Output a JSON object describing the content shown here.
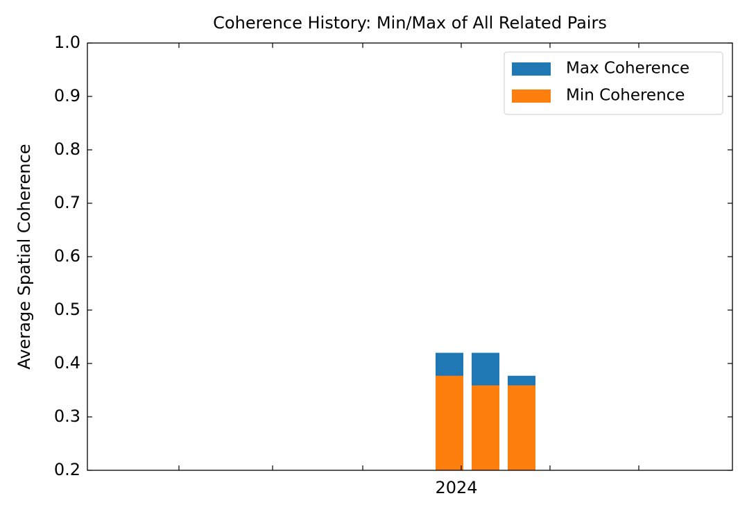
{
  "chart_data": {
    "type": "bar",
    "title": "Coherence History: Min/Max of All Related Pairs",
    "ylabel": "Average Spatial Coherence",
    "categories": [
      null,
      null,
      null
    ],
    "xtick_label": "2024",
    "series": [
      {
        "name": "Max Coherence",
        "color": "#1f77b4",
        "values": [
          0.42,
          0.42,
          0.377
        ]
      },
      {
        "name": "Min Coherence",
        "color": "#ff7f0e",
        "values": [
          0.377,
          0.359,
          0.359
        ]
      }
    ],
    "ylim": [
      0.2,
      1.0
    ],
    "yticks": [
      0.2,
      0.3,
      0.4,
      0.5,
      0.6,
      0.7,
      0.8,
      0.9,
      {
        "value": 1,
        "label": "1.0"
      }
    ],
    "legend": "upper right"
  }
}
